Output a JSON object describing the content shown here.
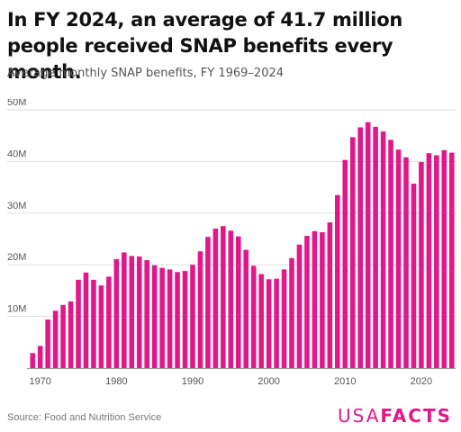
{
  "header": {
    "title": "In FY 2024, an average of 41.7 million people received SNAP benefits every month.",
    "subtitle": "Average monthly SNAP benefits, FY 1969–2024"
  },
  "footer": {
    "source": "Source: Food and Nutrition Service",
    "logo_light": "USA",
    "logo_bold": "FACTS"
  },
  "colors": {
    "bar": "#e0188b",
    "grid": "#dddddd",
    "axis_text": "#555555",
    "brand": "#e0188b"
  },
  "chart_data": {
    "type": "bar",
    "title": "",
    "xlabel": "",
    "ylabel": "",
    "ylim": [
      0,
      50
    ],
    "y_ticks": [
      10,
      20,
      30,
      40,
      50
    ],
    "y_tick_labels": [
      "10M",
      "20M",
      "30M",
      "40M",
      "50M"
    ],
    "x_ticks": [
      1970,
      1980,
      1990,
      2000,
      2010,
      2020
    ],
    "grid": true,
    "categories": [
      1969,
      1970,
      1971,
      1972,
      1973,
      1974,
      1975,
      1976,
      1977,
      1978,
      1979,
      1980,
      1981,
      1982,
      1983,
      1984,
      1985,
      1986,
      1987,
      1988,
      1989,
      1990,
      1991,
      1992,
      1993,
      1994,
      1995,
      1996,
      1997,
      1998,
      1999,
      2000,
      2001,
      2002,
      2003,
      2004,
      2005,
      2006,
      2007,
      2008,
      2009,
      2010,
      2011,
      2012,
      2013,
      2014,
      2015,
      2016,
      2017,
      2018,
      2019,
      2020,
      2021,
      2022,
      2023,
      2024
    ],
    "series": [
      {
        "values": [
          2.9,
          4.3,
          9.4,
          11.1,
          12.2,
          12.9,
          17.1,
          18.5,
          17.1,
          16.0,
          17.7,
          21.1,
          22.4,
          21.7,
          21.6,
          20.9,
          19.9,
          19.4,
          19.1,
          18.6,
          18.8,
          20.0,
          22.6,
          25.4,
          27.0,
          27.5,
          26.6,
          25.5,
          22.9,
          19.8,
          18.2,
          17.2,
          17.3,
          19.1,
          21.3,
          23.9,
          25.6,
          26.5,
          26.3,
          28.2,
          33.5,
          40.3,
          44.7,
          46.6,
          47.6,
          46.7,
          45.8,
          44.2,
          42.3,
          40.8,
          35.7,
          39.9,
          41.6,
          41.2,
          42.2,
          41.7
        ]
      }
    ]
  }
}
